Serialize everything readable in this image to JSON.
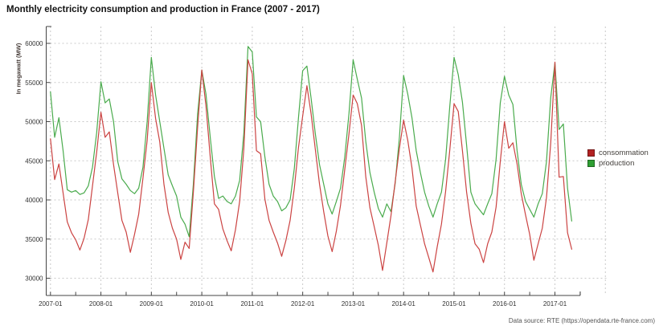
{
  "title": "Monthly electricity consumption and production in France (2007 - 2017)",
  "source_note": "Data source: RTE (https://opendata.rte-france.com)",
  "legend": {
    "items": [
      {
        "label": "consommation",
        "color": "#b22222"
      },
      {
        "label": "production",
        "color": "#2e9e32"
      }
    ]
  },
  "colors": {
    "consommation_line": "#cb4342",
    "production_line": "#4aab4d",
    "axis": "#444444",
    "grid": "#c9c9c9",
    "tick_text": "#333333"
  },
  "chart_data": {
    "type": "line",
    "title": "Monthly electricity consumption and production in France (2007 - 2017)",
    "xlabel": "",
    "ylabel": "In megawatt (MW)",
    "x_monthly_start": "2007-01",
    "x_monthly_end": "2017-05",
    "x_tick_labels": [
      "2007-01",
      "2008-01",
      "2009-01",
      "2010-01",
      "2011-01",
      "2012-01",
      "2013-01",
      "2014-01",
      "2015-01",
      "2016-01",
      "2017-01"
    ],
    "y_ticks": [
      30000,
      35000,
      40000,
      45000,
      50000,
      55000,
      60000
    ],
    "ylim": [
      28500,
      62000
    ],
    "grid": "dashed",
    "legend_position": "right",
    "series": [
      {
        "name": "consommation",
        "color": "#cb4342",
        "values": [
          47800,
          42600,
          44600,
          40900,
          37200,
          35800,
          34900,
          33600,
          35100,
          37500,
          41800,
          46100,
          51200,
          48000,
          48700,
          44500,
          40900,
          37400,
          35900,
          33300,
          35600,
          38200,
          42800,
          47600,
          55000,
          50400,
          47400,
          42000,
          38400,
          36400,
          35000,
          32400,
          34600,
          33800,
          41000,
          49300,
          56600,
          52000,
          45500,
          39500,
          38800,
          36300,
          34800,
          33500,
          36200,
          39800,
          46500,
          57900,
          56100,
          46300,
          45900,
          40100,
          37400,
          35900,
          34500,
          32800,
          34800,
          37400,
          41500,
          46700,
          50700,
          54600,
          51000,
          46500,
          42000,
          38500,
          35400,
          33400,
          36000,
          39300,
          43900,
          48400,
          53400,
          52300,
          49500,
          43000,
          39000,
          36600,
          34200,
          31000,
          34500,
          38000,
          42300,
          46600,
          50200,
          47600,
          44100,
          39200,
          36800,
          34400,
          32600,
          30800,
          34000,
          36900,
          41100,
          46400,
          52300,
          51300,
          46300,
          41000,
          37000,
          34400,
          33700,
          32000,
          34400,
          35900,
          39100,
          44900,
          50000,
          46600,
          47300,
          44600,
          40800,
          38100,
          35600,
          32300,
          34400,
          36400,
          40300,
          47300,
          57600,
          42900,
          43000,
          35800,
          33700
        ]
      },
      {
        "name": "production",
        "color": "#4aab4d",
        "values": [
          53800,
          48000,
          50500,
          46300,
          41300,
          41000,
          41200,
          40700,
          40900,
          41800,
          44200,
          48600,
          55100,
          52400,
          52900,
          50000,
          44900,
          42700,
          42000,
          41200,
          40800,
          41500,
          44200,
          50000,
          58200,
          53400,
          50000,
          46600,
          43200,
          41800,
          40500,
          37800,
          36900,
          35300,
          42000,
          51000,
          56600,
          53500,
          48000,
          43000,
          40200,
          40500,
          39800,
          39500,
          40500,
          42500,
          48500,
          59600,
          58900,
          50600,
          50000,
          45500,
          42000,
          40500,
          39800,
          38600,
          39000,
          40000,
          44000,
          50500,
          56500,
          57100,
          53000,
          48500,
          44500,
          42000,
          39500,
          38200,
          39800,
          41500,
          45500,
          51000,
          57900,
          55400,
          53000,
          47500,
          43500,
          41000,
          38900,
          37800,
          39500,
          38500,
          42100,
          48000,
          55900,
          53500,
          50500,
          46300,
          43500,
          41000,
          39200,
          37800,
          39500,
          41000,
          45200,
          52000,
          58200,
          56000,
          52500,
          47000,
          41000,
          39500,
          38800,
          38100,
          39500,
          40800,
          45200,
          52400,
          55800,
          53400,
          52200,
          46300,
          42000,
          39800,
          38800,
          37800,
          39500,
          40800,
          44900,
          53100,
          57500,
          49000,
          49700,
          41500,
          37300
        ]
      }
    ]
  }
}
